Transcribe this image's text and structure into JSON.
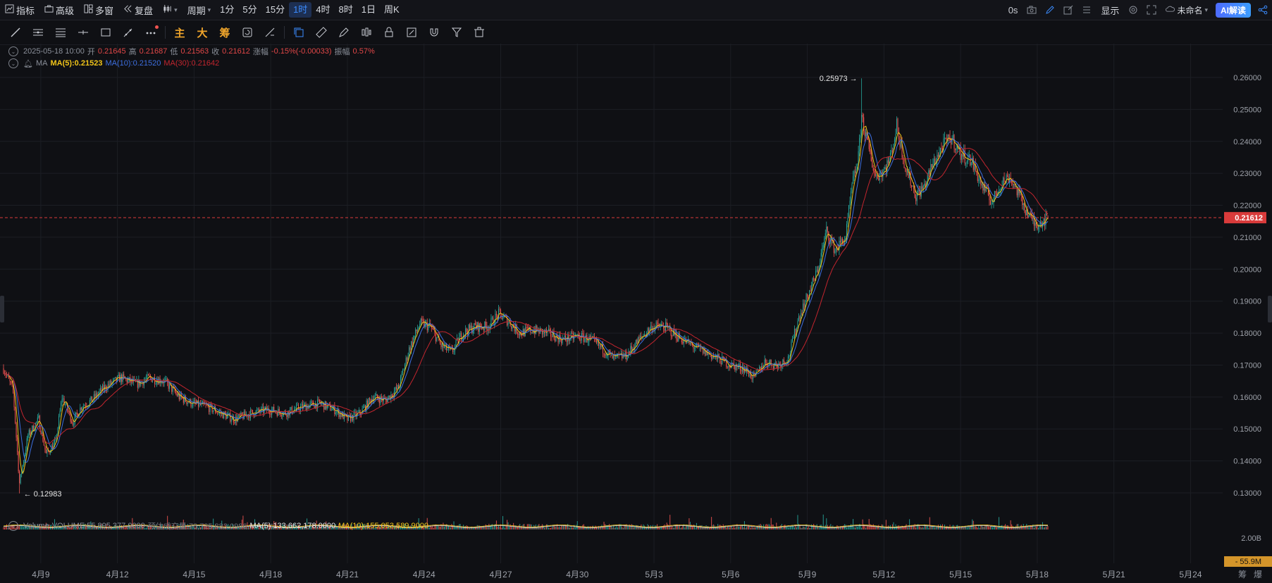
{
  "toolbar": {
    "indicators": "指标",
    "advanced": "高级",
    "multi_window": "多窗",
    "replay": "复盘",
    "period_label": "周期",
    "periods": [
      "1分",
      "5分",
      "15分",
      "1时",
      "4时",
      "8时",
      "1日",
      "周K"
    ],
    "active_period": "1时",
    "right": {
      "timer": "0s",
      "display": "显示",
      "layout_name": "未命名",
      "ai": "AI解读"
    }
  },
  "drawing_tools": {
    "chars": [
      "主",
      "大",
      "筹"
    ]
  },
  "ohlc": {
    "date": "2025-05-18 10:00",
    "open_label": "开",
    "open": "0.21645",
    "high_label": "高",
    "high": "0.21687",
    "low_label": "低",
    "low": "0.21563",
    "close_label": "收",
    "close": "0.21612",
    "change_label": "涨幅",
    "change": "-0.15%(-0.00033)",
    "amplitude_label": "振幅",
    "amplitude": "0.57%"
  },
  "ma": {
    "name": "MA",
    "ma5": "MA(5):0.21523",
    "ma10": "MA(10):0.21520",
    "ma30": "MA(30):0.21642"
  },
  "volume": {
    "name": "Volume",
    "value": "VOLUME:55,895,377.0000",
    "estimate": "预估成交量:78,725,883.0986",
    "ma5": "MA(5):133,662,178.0000",
    "ma10": "MA(10):155,053,589.9000",
    "axis_top": "2.00B",
    "last_tag": "55.9M"
  },
  "colors": {
    "up": "#26a69a",
    "down": "#ef5350",
    "ma5": "#f0c419",
    "ma10": "#3d6fe0",
    "ma30": "#c2252e",
    "active": "#3b8cff",
    "price_tag": "#d93b3b"
  },
  "bottom_right": [
    "筹",
    "爆"
  ],
  "chart_data": {
    "type": "candlestick",
    "timeframe": "1时",
    "y_ticks": [
      "0.26000",
      "0.25000",
      "0.24000",
      "0.23000",
      "0.22000",
      "0.21000",
      "0.20000",
      "0.19000",
      "0.18000",
      "0.17000",
      "0.16000",
      "0.15000",
      "0.14000",
      "0.13000"
    ],
    "ylim": [
      0.123,
      0.2635
    ],
    "x_tick_labels": [
      "4月9",
      "4月12",
      "4月15",
      "4月18",
      "4月21",
      "4月24",
      "4月27",
      "4月30",
      "5月3",
      "5月6",
      "5月9",
      "5月12",
      "5月15",
      "5月18",
      "5月21",
      "5月24"
    ],
    "x_days": [
      "2025-04-07T13:00",
      "2025-05-18T10:00"
    ],
    "last_price": 0.21612,
    "last_price_label": "0.21612",
    "max_annotation": {
      "value": 0.25973,
      "label": "0.25973",
      "date": "2025-05-11T03:00"
    },
    "min_annotation": {
      "value": 0.12983,
      "label": "0.12983",
      "date": "2025-04-08T04:00"
    },
    "close_path": [
      [
        "2025-04-07T13:00",
        0.169
      ],
      [
        "2025-04-07T22:00",
        0.162
      ],
      [
        "2025-04-08T04:00",
        0.133
      ],
      [
        "2025-04-08T12:00",
        0.148
      ],
      [
        "2025-04-08T22:00",
        0.153
      ],
      [
        "2025-04-09T05:00",
        0.142
      ],
      [
        "2025-04-09T14:00",
        0.146
      ],
      [
        "2025-04-09T20:00",
        0.16
      ],
      [
        "2025-04-10T06:00",
        0.152
      ],
      [
        "2025-04-10T14:00",
        0.157
      ],
      [
        "2025-04-11T00:00",
        0.159
      ],
      [
        "2025-04-11T12:00",
        0.163
      ],
      [
        "2025-04-12T03:00",
        0.166
      ],
      [
        "2025-04-12T18:00",
        0.164
      ],
      [
        "2025-04-13T06:00",
        0.166
      ],
      [
        "2025-04-13T20:00",
        0.165
      ],
      [
        "2025-04-14T10:00",
        0.16
      ],
      [
        "2025-04-14T22:00",
        0.158
      ],
      [
        "2025-04-15T12:00",
        0.157
      ],
      [
        "2025-04-16T00:00",
        0.155
      ],
      [
        "2025-04-16T14:00",
        0.153
      ],
      [
        "2025-04-17T06:00",
        0.155
      ],
      [
        "2025-04-17T22:00",
        0.156
      ],
      [
        "2025-04-18T14:00",
        0.155
      ],
      [
        "2025-04-19T06:00",
        0.157
      ],
      [
        "2025-04-19T22:00",
        0.158
      ],
      [
        "2025-04-20T12:00",
        0.156
      ],
      [
        "2025-04-21T00:00",
        0.153
      ],
      [
        "2025-04-21T12:00",
        0.155
      ],
      [
        "2025-04-22T00:00",
        0.16
      ],
      [
        "2025-04-22T12:00",
        0.159
      ],
      [
        "2025-04-23T00:00",
        0.163
      ],
      [
        "2025-04-23T10:00",
        0.175
      ],
      [
        "2025-04-23T20:00",
        0.183
      ],
      [
        "2025-04-24T06:00",
        0.182
      ],
      [
        "2025-04-24T16:00",
        0.176
      ],
      [
        "2025-04-25T02:00",
        0.174
      ],
      [
        "2025-04-25T12:00",
        0.18
      ],
      [
        "2025-04-26T00:00",
        0.182
      ],
      [
        "2025-04-26T12:00",
        0.182
      ],
      [
        "2025-04-26T22:00",
        0.186
      ],
      [
        "2025-04-27T06:00",
        0.184
      ],
      [
        "2025-04-27T18:00",
        0.18
      ],
      [
        "2025-04-28T06:00",
        0.181
      ],
      [
        "2025-04-28T20:00",
        0.18
      ],
      [
        "2025-04-29T10:00",
        0.178
      ],
      [
        "2025-04-30T00:00",
        0.179
      ],
      [
        "2025-04-30T12:00",
        0.178
      ],
      [
        "2025-05-01T00:00",
        0.175
      ],
      [
        "2025-05-01T10:00",
        0.172
      ],
      [
        "2025-05-01T22:00",
        0.173
      ],
      [
        "2025-05-02T10:00",
        0.178
      ],
      [
        "2025-05-02T22:00",
        0.182
      ],
      [
        "2025-05-03T10:00",
        0.182
      ],
      [
        "2025-05-03T22:00",
        0.179
      ],
      [
        "2025-05-04T12:00",
        0.176
      ],
      [
        "2025-05-05T00:00",
        0.174
      ],
      [
        "2025-05-05T12:00",
        0.172
      ],
      [
        "2025-05-06T00:00",
        0.17
      ],
      [
        "2025-05-06T12:00",
        0.169
      ],
      [
        "2025-05-06T22:00",
        0.166
      ],
      [
        "2025-05-07T08:00",
        0.171
      ],
      [
        "2025-05-07T20:00",
        0.17
      ],
      [
        "2025-05-08T06:00",
        0.172
      ],
      [
        "2025-05-08T16:00",
        0.185
      ],
      [
        "2025-05-09T02:00",
        0.193
      ],
      [
        "2025-05-09T10:00",
        0.2
      ],
      [
        "2025-05-09T18:00",
        0.212
      ],
      [
        "2025-05-10T02:00",
        0.206
      ],
      [
        "2025-05-10T12:00",
        0.21
      ],
      [
        "2025-05-10T18:00",
        0.226
      ],
      [
        "2025-05-11T00:00",
        0.235
      ],
      [
        "2025-05-11T03:00",
        0.248
      ],
      [
        "2025-05-11T08:00",
        0.24
      ],
      [
        "2025-05-11T16:00",
        0.229
      ],
      [
        "2025-05-12T00:00",
        0.231
      ],
      [
        "2025-05-12T06:00",
        0.235
      ],
      [
        "2025-05-12T12:00",
        0.245
      ],
      [
        "2025-05-12T20:00",
        0.232
      ],
      [
        "2025-05-13T06:00",
        0.223
      ],
      [
        "2025-05-13T14:00",
        0.226
      ],
      [
        "2025-05-13T22:00",
        0.233
      ],
      [
        "2025-05-14T08:00",
        0.239
      ],
      [
        "2025-05-14T16:00",
        0.241
      ],
      [
        "2025-05-15T00:00",
        0.236
      ],
      [
        "2025-05-15T10:00",
        0.234
      ],
      [
        "2025-05-15T20:00",
        0.226
      ],
      [
        "2025-05-16T06:00",
        0.221
      ],
      [
        "2025-05-16T14:00",
        0.227
      ],
      [
        "2025-05-16T22:00",
        0.229
      ],
      [
        "2025-05-17T06:00",
        0.224
      ],
      [
        "2025-05-17T14:00",
        0.218
      ],
      [
        "2025-05-17T22:00",
        0.214
      ],
      [
        "2025-05-18T04:00",
        0.215
      ],
      [
        "2025-05-18T10:00",
        0.21612
      ]
    ]
  }
}
